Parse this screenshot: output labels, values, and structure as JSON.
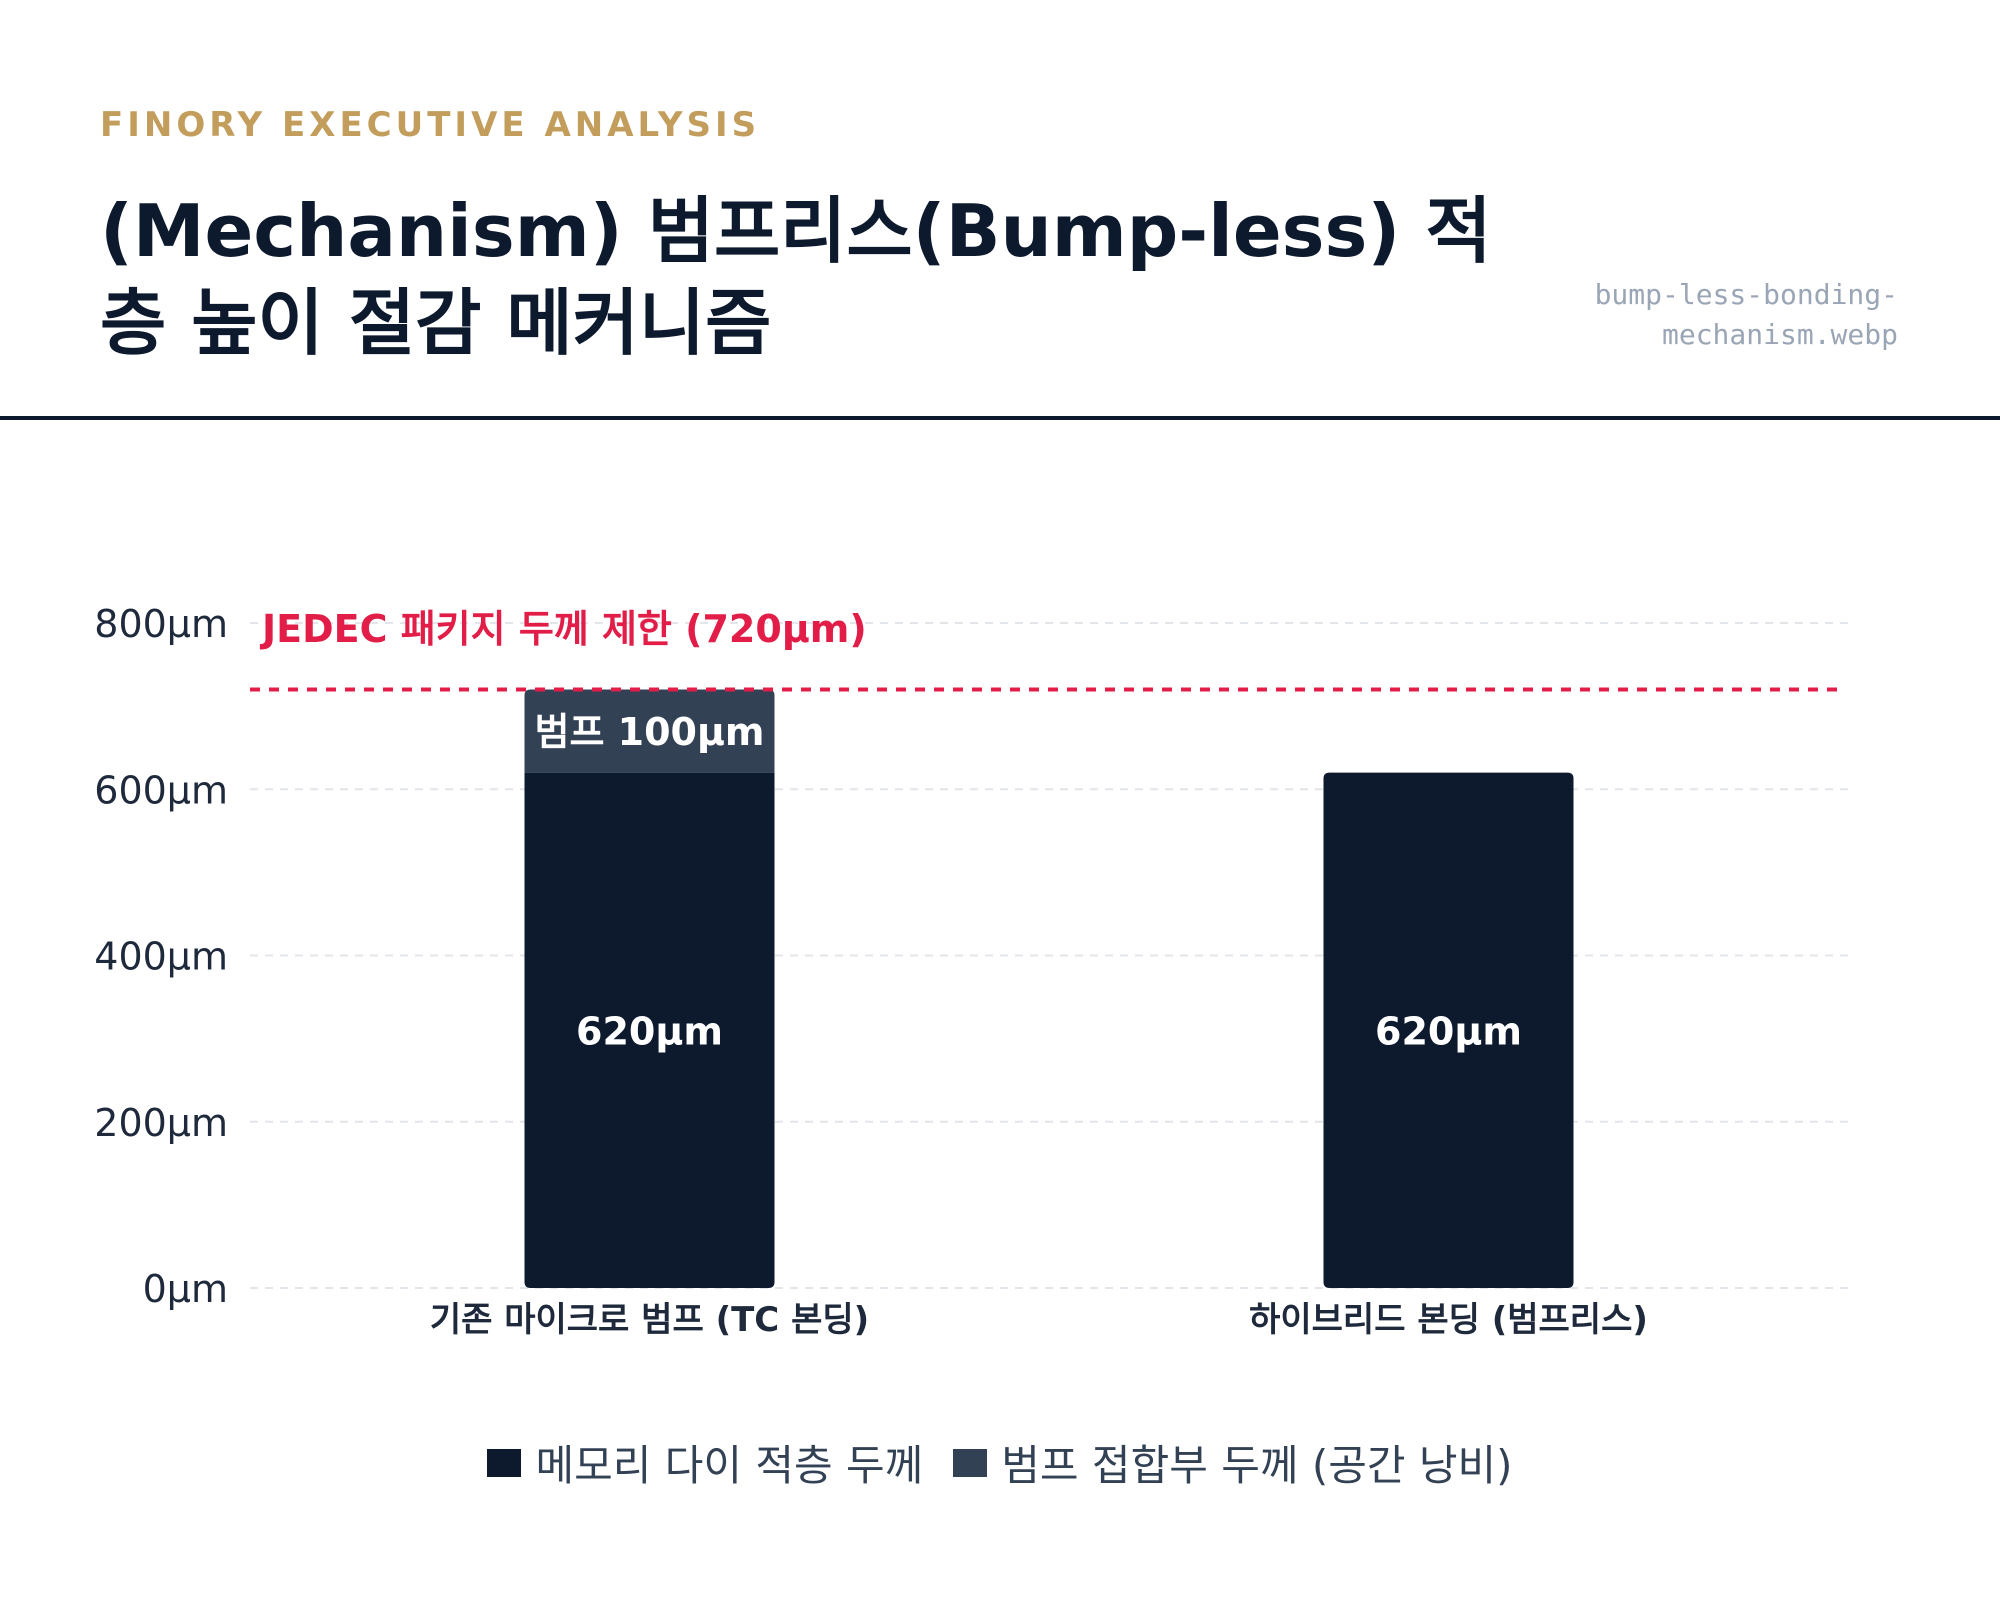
{
  "header": {
    "brand": "FINORY EXECUTIVE ANALYSIS",
    "title": "(Mechanism) 범프리스(Bump-less) 적층 높이 절감 메커니즘",
    "filename": "bump-less-bonding-mechanism.webp"
  },
  "chart_data": {
    "type": "bar",
    "stacked": true,
    "title": "(Mechanism) 범프리스(Bump-less) 적층 높이 절감 메커니즘",
    "categories": [
      "기존 마이크로 범프 (TC 본딩)",
      "하이브리드 본딩 (범프리스)"
    ],
    "series": [
      {
        "name": "메모리 다이 적층 두께",
        "values": [
          620,
          620
        ],
        "labels": [
          "620µm",
          "620µm"
        ],
        "color": "#0d1a2e"
      },
      {
        "name": "범프 접합부 두께 (공간 낭비)",
        "values": [
          100,
          0
        ],
        "labels": [
          "범프 100µm",
          ""
        ],
        "color": "#334155"
      }
    ],
    "ylim": [
      0,
      800
    ],
    "yticks": [
      0,
      200,
      400,
      600,
      800
    ],
    "ytick_labels": [
      "0µm",
      "200µm",
      "400µm",
      "600µm",
      "800µm"
    ],
    "grid": true,
    "legend_position": "bottom",
    "reference_line": {
      "value": 720,
      "label": "JEDEC 패키지 두께 제한 (720µm)",
      "color": "#e11d48"
    }
  }
}
